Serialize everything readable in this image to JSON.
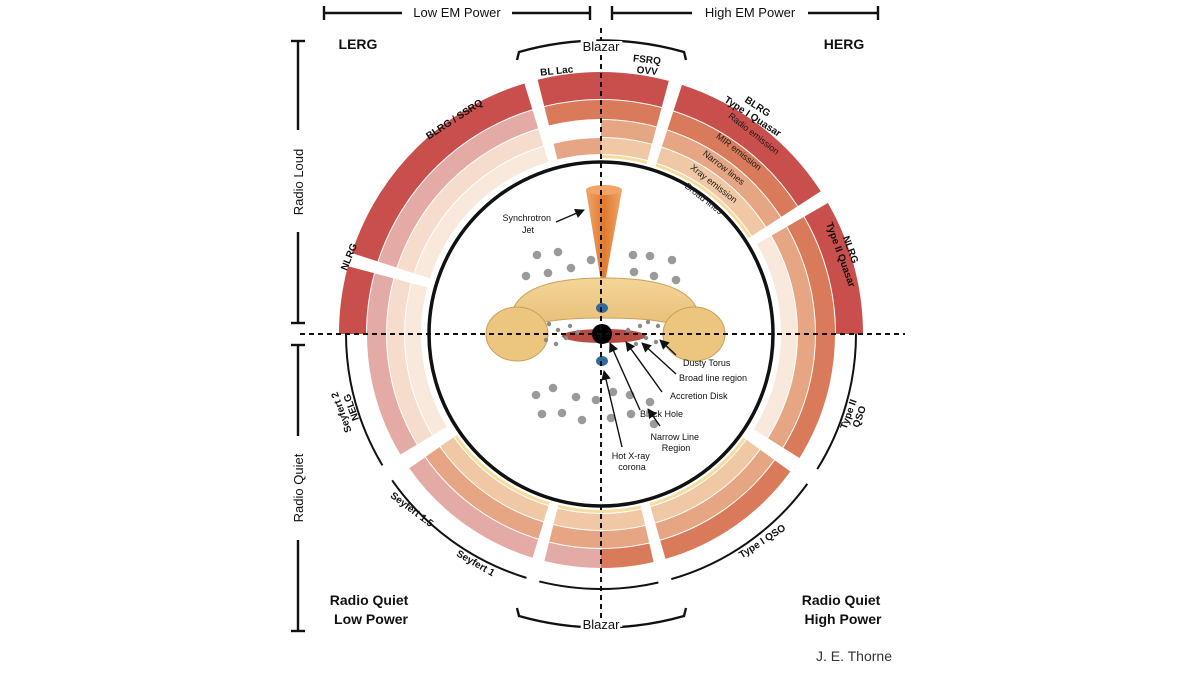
{
  "headers": {
    "low_em_power": "Low EM Power",
    "high_em_power": "High EM Power",
    "radio_loud": "Radio Loud",
    "radio_quiet": "Radio Quiet",
    "blazar_top": "Blazar",
    "blazar_bottom": "Blazar"
  },
  "quadrants": {
    "lerg": "LERG",
    "herg": "HERG",
    "rq_low_line1": "Radio Quiet",
    "rq_low_line2": "Low Power",
    "rq_high_line1": "Radio Quiet",
    "rq_high_line2": "High Power"
  },
  "segments": {
    "bl_lac": "BL Lac",
    "fsrq_line1": "FSRQ",
    "fsrq_line2": "OVV",
    "blrg_ssrq": "BLRG / SSRQ",
    "nlrg_left": "NLRG",
    "blrg_line1": "BLRG",
    "blrg_line2": "Type I Quasar",
    "nlrg_right_line1": "NLRG",
    "nlrg_right_line2": "Type II Quasar",
    "seyfert2_line1": "Seyfert 2",
    "seyfert2_line2": "NELG",
    "seyfert15": "Seyfert 1.5",
    "seyfert1": "Seyfert 1",
    "type1qso": "Type I QSO",
    "type2qso_line1": "Type II",
    "type2qso_line2": "QSO"
  },
  "ring_labels": {
    "radio": "Radio emission",
    "mir": "MIR emission",
    "narrow": "Narrow lines",
    "xray": "Xray emission",
    "broad": "Broad lines"
  },
  "components": {
    "jet_line1": "Synchrotron",
    "jet_line2": "Jet",
    "torus": "Dusty Torus",
    "blr": "Broad line region",
    "disk": "Accretion Disk",
    "bh": "Black Hole",
    "nlr_line1": "Narrow Line",
    "nlr_line2": "Region",
    "corona_line1": "Hot X-ray",
    "corona_line2": "corona"
  },
  "credit": "J. E. Thorne",
  "colors": {
    "radio": "#c94f4c",
    "mir": "#d97a5a",
    "narrow": "#e6a583",
    "xray": "#f1c8a5",
    "broad": "#f6dc9e",
    "radio_faded": "#e3aaa6",
    "mir_faded": "#efc3b3",
    "narrow_faded": "#f5dccc",
    "xray_faded": "#f9e8dc",
    "torus": "#ecc57e",
    "torus_edge": "#b8924d",
    "jet": "#e68a3c",
    "cloud": "#9a9a9a",
    "disk": "#b84b42",
    "corona": "#2f6c9c"
  }
}
